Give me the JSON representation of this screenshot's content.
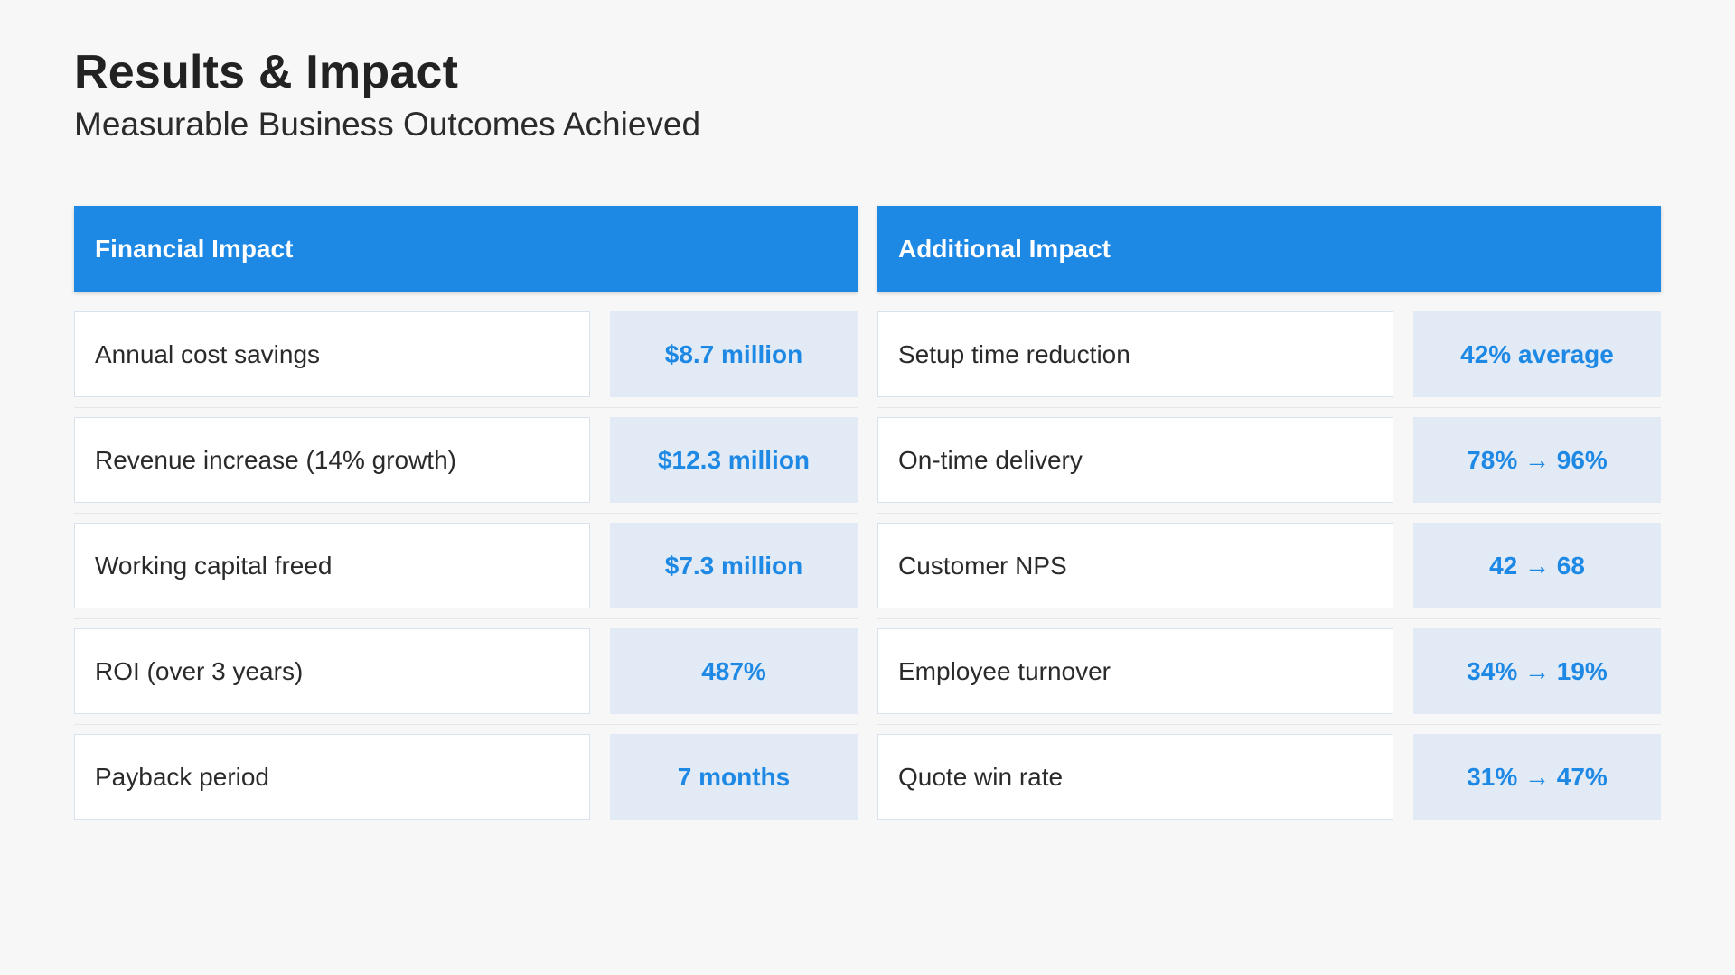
{
  "header": {
    "title": "Results & Impact",
    "subtitle": "Measurable Business Outcomes Achieved"
  },
  "panels": [
    {
      "title": "Financial Impact",
      "rows": [
        {
          "label": "Annual cost savings",
          "value": "$8.7 million"
        },
        {
          "label": "Revenue increase (14% growth)",
          "value": "$12.3 million"
        },
        {
          "label": "Working capital freed",
          "value": "$7.3 million"
        },
        {
          "label": "ROI (over 3 years)",
          "value": "487%"
        },
        {
          "label": "Payback period",
          "value": "7 months"
        }
      ]
    },
    {
      "title": "Additional Impact",
      "rows": [
        {
          "label": "Setup time reduction",
          "value": "42% average"
        },
        {
          "label": "On-time delivery",
          "value": "78% → 96%"
        },
        {
          "label": "Customer NPS",
          "value": "42 → 68"
        },
        {
          "label": "Employee turnover",
          "value": "34% → 19%"
        },
        {
          "label": "Quote win rate",
          "value": "31% → 47%"
        }
      ]
    }
  ],
  "colors": {
    "accent": "#1e88e5",
    "value_background": "#e2ebf5",
    "page_background": "#f7f7f7"
  }
}
